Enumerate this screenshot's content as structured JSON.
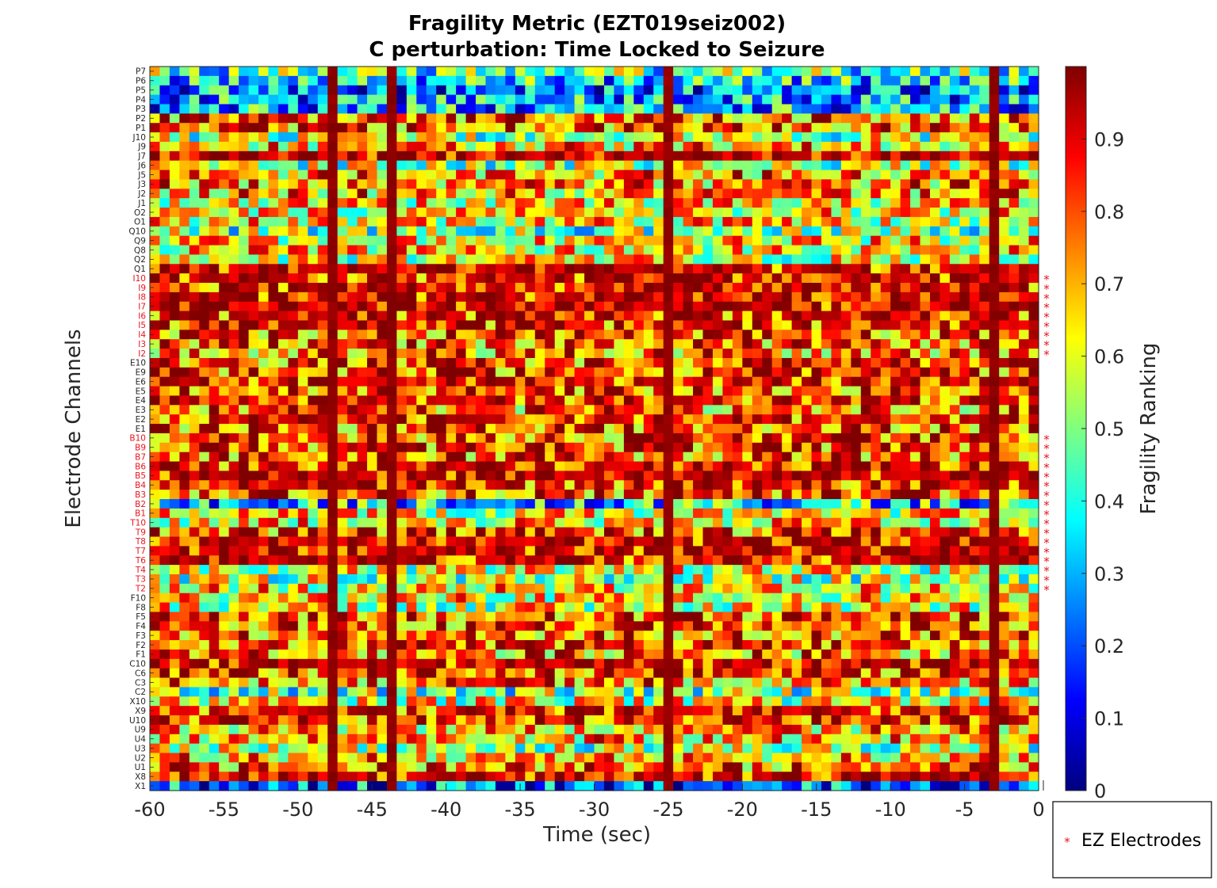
{
  "chart_data": {
    "type": "heatmap",
    "title": "Fragility Metric (EZT019seiz002)",
    "subtitle": "C perturbation:  Time Locked to Seizure",
    "xlabel": "Time (sec)",
    "ylabel": "Electrode Channels",
    "colorbar_label": "Fragility Ranking",
    "colormap": "jet",
    "xlim": [
      -60,
      0
    ],
    "x_ticks": [
      "-60",
      "-55",
      "-50",
      "-45",
      "-40",
      "-35",
      "-30",
      "-25",
      "-20",
      "-15",
      "-10",
      "-5",
      "0"
    ],
    "clim": [
      0,
      1
    ],
    "colorbar_ticks": [
      "0",
      "0.1",
      "0.2",
      "0.3",
      "0.4",
      "0.5",
      "0.6",
      "0.7",
      "0.8",
      "0.9"
    ],
    "channels": [
      "P7",
      "P6",
      "P5",
      "P4",
      "P3",
      "P2",
      "P1",
      "J10",
      "J9",
      "J7",
      "J6",
      "J5",
      "J3",
      "J2",
      "J1",
      "O2",
      "O1",
      "Q10",
      "Q9",
      "Q8",
      "Q2",
      "Q1",
      "I10",
      "I9",
      "I8",
      "I7",
      "I6",
      "I5",
      "I4",
      "I3",
      "I2",
      "E10",
      "E9",
      "E6",
      "E5",
      "E4",
      "E3",
      "E2",
      "E1",
      "B10",
      "B9",
      "B7",
      "B6",
      "B5",
      "B4",
      "B3",
      "B2",
      "B1",
      "T10",
      "T9",
      "T8",
      "T7",
      "T6",
      "T4",
      "T3",
      "T2",
      "F10",
      "F8",
      "F5",
      "F4",
      "F3",
      "F2",
      "F1",
      "C10",
      "C6",
      "C3",
      "C2",
      "X10",
      "X9",
      "U10",
      "U9",
      "U4",
      "U3",
      "U2",
      "U1",
      "X8",
      "X1"
    ],
    "ez_channels": [
      "I10",
      "I9",
      "I8",
      "I7",
      "I6",
      "I5",
      "I4",
      "I3",
      "I2",
      "B10",
      "B9",
      "B7",
      "B6",
      "B5",
      "B4",
      "B3",
      "B2",
      "B1",
      "T10",
      "T9",
      "T8",
      "T7",
      "T6",
      "T4",
      "T3",
      "T2"
    ],
    "channel_mean_fragility": {
      "P7": 0.45,
      "P6": 0.35,
      "P5": 0.25,
      "P4": 0.3,
      "P3": 0.3,
      "P2": 0.78,
      "P1": 0.8,
      "J10": 0.55,
      "J9": 0.7,
      "J7": 0.95,
      "J6": 0.55,
      "J5": 0.72,
      "J3": 0.75,
      "J2": 0.72,
      "J1": 0.65,
      "O2": 0.65,
      "O1": 0.65,
      "Q10": 0.5,
      "Q9": 0.65,
      "Q8": 0.65,
      "Q2": 0.6,
      "Q1": 0.88,
      "I10": 0.85,
      "I9": 0.85,
      "I8": 0.9,
      "I7": 0.92,
      "I6": 0.85,
      "I5": 0.85,
      "I4": 0.8,
      "I3": 0.78,
      "I2": 0.75,
      "E10": 0.8,
      "E9": 0.82,
      "E6": 0.85,
      "E5": 0.82,
      "E4": 0.85,
      "E3": 0.75,
      "E2": 0.85,
      "E1": 0.8,
      "B10": 0.8,
      "B9": 0.82,
      "B7": 0.8,
      "B6": 0.85,
      "B5": 0.92,
      "B4": 0.85,
      "B3": 0.8,
      "B2": 0.35,
      "B1": 0.62,
      "T10": 0.65,
      "T9": 0.8,
      "T8": 0.92,
      "T7": 0.92,
      "T6": 0.88,
      "T4": 0.6,
      "T3": 0.55,
      "T2": 0.65,
      "F10": 0.65,
      "F8": 0.6,
      "F5": 0.82,
      "F4": 0.8,
      "F3": 0.8,
      "F2": 0.82,
      "F1": 0.75,
      "C10": 0.9,
      "C6": 0.82,
      "C3": 0.75,
      "C2": 0.5,
      "X10": 0.6,
      "X9": 0.85,
      "U10": 0.82,
      "U9": 0.7,
      "U4": 0.7,
      "U3": 0.55,
      "U2": 0.72,
      "U1": 0.75,
      "X8": 0.92,
      "X1": 0.2
    },
    "high_fragility_time_columns_sec": [
      -47.5,
      -43.8,
      -25.3,
      -2.7
    ],
    "legend": {
      "label": "EZ Electrodes",
      "marker": "*",
      "color": "#e8141e",
      "position": "bottom-right"
    }
  }
}
